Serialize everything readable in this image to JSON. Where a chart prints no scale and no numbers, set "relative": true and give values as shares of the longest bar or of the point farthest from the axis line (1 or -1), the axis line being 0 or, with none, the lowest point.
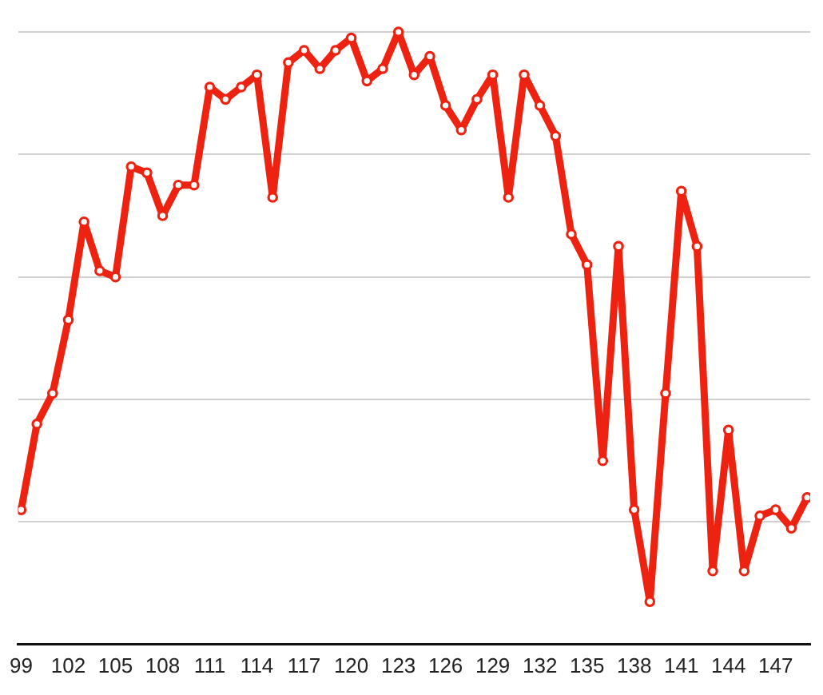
{
  "chart_data": {
    "type": "line",
    "relative": true,
    "x": [
      99,
      100,
      101,
      102,
      103,
      104,
      105,
      106,
      107,
      108,
      109,
      110,
      111,
      112,
      113,
      114,
      115,
      116,
      117,
      118,
      119,
      120,
      121,
      122,
      123,
      124,
      125,
      126,
      127,
      128,
      129,
      130,
      131,
      132,
      133,
      134,
      135,
      136,
      137,
      138,
      139,
      140,
      141,
      142,
      143,
      144,
      145,
      146,
      147,
      148,
      149
    ],
    "values": [
      0.22,
      0.36,
      0.41,
      0.53,
      0.69,
      0.61,
      0.6,
      0.78,
      0.77,
      0.7,
      0.75,
      0.75,
      0.91,
      0.89,
      0.91,
      0.93,
      0.73,
      0.95,
      0.97,
      0.94,
      0.97,
      0.99,
      0.92,
      0.94,
      1,
      0.93,
      0.96,
      0.88,
      0.84,
      0.89,
      0.93,
      0.73,
      0.93,
      0.88,
      0.83,
      0.67,
      0.62,
      0.3,
      0.65,
      0.22,
      0.07,
      0.41,
      0.74,
      0.65,
      0.12,
      0.35,
      0.12,
      0.21,
      0.22,
      0.19,
      0.24
    ],
    "color": "#ee2211",
    "xlim": [
      98.8,
      149.2
    ],
    "xticks": [
      99,
      102,
      105,
      108,
      111,
      114,
      117,
      120,
      123,
      126,
      129,
      132,
      135,
      138,
      141,
      144,
      147
    ],
    "grid": "y",
    "marker": "circle",
    "line_style": "solid",
    "tick_labels": "x"
  }
}
